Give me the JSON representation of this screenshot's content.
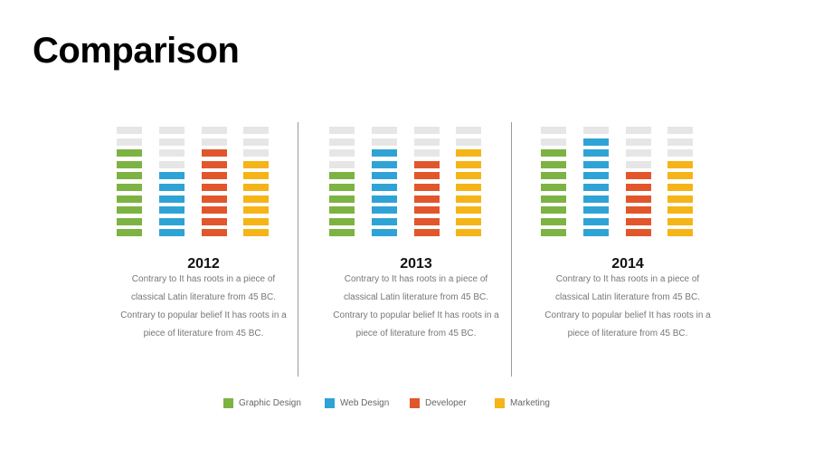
{
  "title": "Comparison",
  "colors": {
    "Graphic Design": "#7cb342",
    "Web Design": "#2fa3d6",
    "Developer": "#e2562b",
    "Marketing": "#f5b417",
    "empty": "#e6e6e6"
  },
  "chart_data": [
    {
      "type": "bar",
      "title": "2012",
      "categories": [
        "Graphic Design",
        "Web Design",
        "Developer",
        "Marketing"
      ],
      "values": [
        8,
        6,
        8,
        7
      ],
      "ylim": [
        0,
        10
      ],
      "legend": "bottom"
    },
    {
      "type": "bar",
      "title": "2013",
      "categories": [
        "Graphic Design",
        "Web Design",
        "Developer",
        "Marketing"
      ],
      "values": [
        6,
        8,
        7,
        8
      ],
      "ylim": [
        0,
        10
      ],
      "legend": "bottom"
    },
    {
      "type": "bar",
      "title": "2014",
      "categories": [
        "Graphic Design",
        "Web Design",
        "Developer",
        "Marketing"
      ],
      "values": [
        8,
        9,
        6,
        7
      ],
      "ylim": [
        0,
        10
      ],
      "legend": "bottom"
    }
  ],
  "panels": [
    {
      "year": "2012",
      "lines": [
        "Contrary to It has roots in a piece of",
        "classical Latin literature from 45 BC.",
        "Contrary to popular belief It has roots in a",
        "piece of literature from 45 BC."
      ]
    },
    {
      "year": "2013",
      "lines": [
        "Contrary to It has roots in a piece of",
        "classical Latin literature from 45 BC.",
        "Contrary to popular belief It has roots in a",
        "piece of literature from 45 BC."
      ]
    },
    {
      "year": "2014",
      "lines": [
        "Contrary to It has roots in a piece of",
        "classical Latin literature from 45 BC.",
        "Contrary to popular belief It has roots in a",
        "piece of literature from 45 BC."
      ]
    }
  ],
  "legend": [
    "Graphic Design",
    "Web Design",
    "Developer",
    "Marketing"
  ]
}
